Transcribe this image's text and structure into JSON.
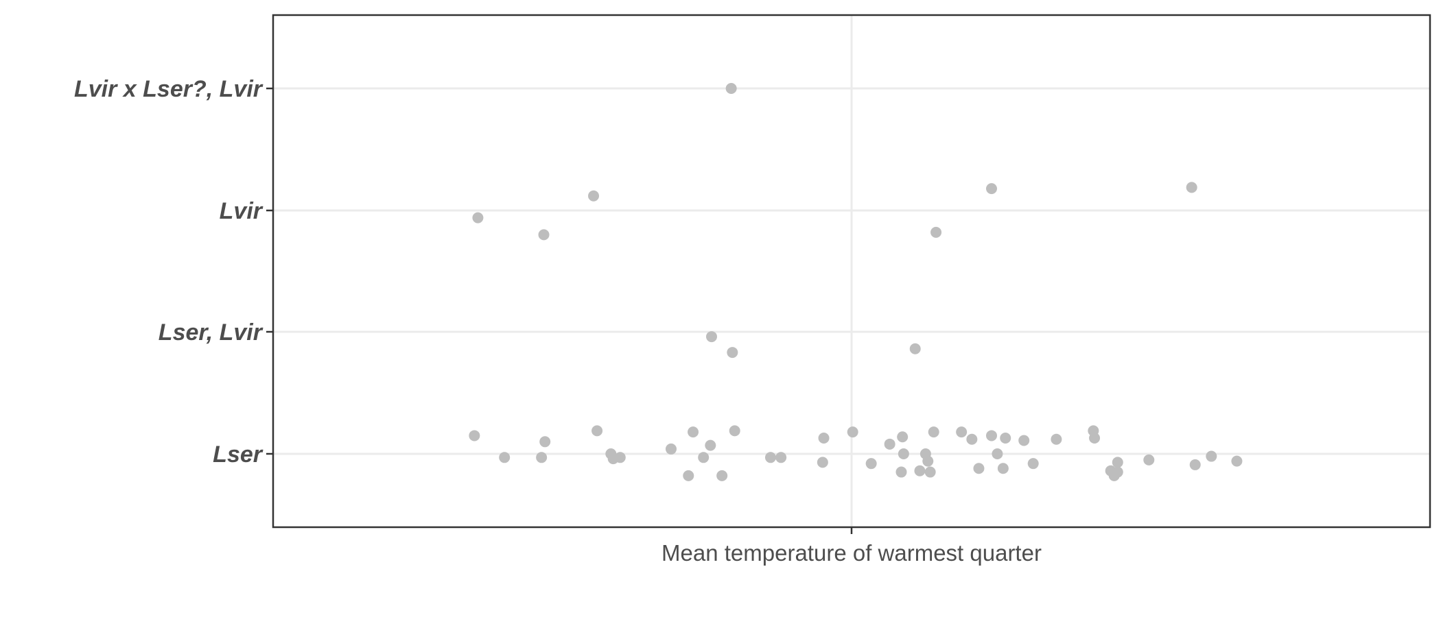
{
  "chart_data": {
    "type": "scatter",
    "title": "",
    "xlabel": "Mean temperature of warmest quarter",
    "ylabel": "",
    "categories": [
      "Lser",
      "Lser, Lvir",
      "Lvir",
      "Lvir x Lser?, Lvir"
    ],
    "xlim": [
      0,
      1
    ],
    "grid": true,
    "legend": "none",
    "point_color": "#bdbdbd",
    "series": [
      {
        "category": "Lvir x Lser?, Lvir",
        "points": [
          [
            0.396,
            0.0
          ]
        ]
      },
      {
        "category": "Lvir",
        "points": [
          [
            0.177,
            0.06
          ],
          [
            0.234,
            0.2
          ],
          [
            0.277,
            -0.12
          ],
          [
            0.573,
            0.18
          ],
          [
            0.621,
            -0.18
          ],
          [
            0.794,
            -0.19
          ]
        ]
      },
      {
        "category": "Lser, Lvir",
        "points": [
          [
            0.379,
            0.04
          ],
          [
            0.397,
            0.17
          ],
          [
            0.555,
            0.14
          ]
        ]
      },
      {
        "category": "Lser",
        "points": [
          [
            0.174,
            -0.15
          ],
          [
            0.2,
            0.03
          ],
          [
            0.232,
            0.03
          ],
          [
            0.235,
            -0.1
          ],
          [
            0.28,
            -0.19
          ],
          [
            0.292,
            0.0
          ],
          [
            0.294,
            0.04
          ],
          [
            0.3,
            0.03
          ],
          [
            0.344,
            -0.04
          ],
          [
            0.359,
            0.18
          ],
          [
            0.372,
            0.03
          ],
          [
            0.363,
            -0.18
          ],
          [
            0.378,
            -0.07
          ],
          [
            0.388,
            0.18
          ],
          [
            0.399,
            -0.19
          ],
          [
            0.43,
            0.03
          ],
          [
            0.439,
            0.03
          ],
          [
            0.475,
            0.07
          ],
          [
            0.476,
            -0.13
          ],
          [
            0.501,
            -0.18
          ],
          [
            0.517,
            0.08
          ],
          [
            0.543,
            0.15
          ],
          [
            0.533,
            -0.08
          ],
          [
            0.545,
            0.0
          ],
          [
            0.544,
            -0.14
          ],
          [
            0.559,
            0.14
          ],
          [
            0.566,
            0.06
          ],
          [
            0.564,
            0.0
          ],
          [
            0.568,
            0.15
          ],
          [
            0.571,
            -0.18
          ],
          [
            0.595,
            -0.18
          ],
          [
            0.604,
            -0.12
          ],
          [
            0.61,
            0.12
          ],
          [
            0.621,
            -0.15
          ],
          [
            0.626,
            0.0
          ],
          [
            0.631,
            0.12
          ],
          [
            0.633,
            -0.13
          ],
          [
            0.649,
            -0.11
          ],
          [
            0.657,
            0.08
          ],
          [
            0.677,
            -0.12
          ],
          [
            0.71,
            -0.13
          ],
          [
            0.709,
            -0.19
          ],
          [
            0.724,
            0.14
          ],
          [
            0.727,
            0.18
          ],
          [
            0.73,
            0.15
          ],
          [
            0.73,
            0.07
          ],
          [
            0.757,
            0.05
          ],
          [
            0.797,
            0.09
          ],
          [
            0.811,
            0.02
          ],
          [
            0.833,
            0.06
          ]
        ]
      }
    ]
  }
}
